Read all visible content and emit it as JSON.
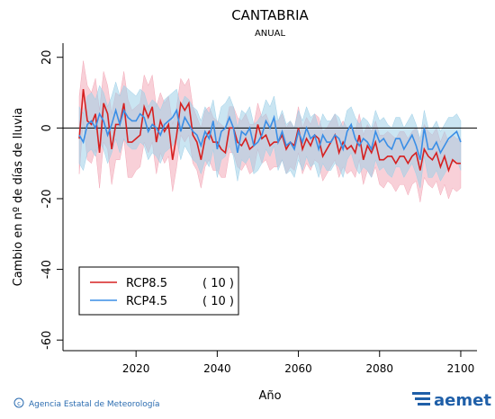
{
  "chart_data": {
    "type": "line",
    "title": "CANTABRIA",
    "subtitle": "ANUAL",
    "x_label": "Año",
    "y_label": "Cambio en nº de días de lluvia",
    "xlim": [
      2002,
      2104
    ],
    "xticks": [
      2020,
      2040,
      2060,
      2080,
      2100
    ],
    "ylim": [
      -63,
      24
    ],
    "yticks": [
      -60,
      -40,
      -20,
      0,
      20
    ],
    "hline": 0,
    "legend": "bottom-left",
    "x": [
      2006,
      2007,
      2008,
      2009,
      2010,
      2011,
      2012,
      2013,
      2014,
      2015,
      2016,
      2017,
      2018,
      2019,
      2020,
      2021,
      2022,
      2023,
      2024,
      2025,
      2026,
      2027,
      2028,
      2029,
      2030,
      2031,
      2032,
      2033,
      2034,
      2035,
      2036,
      2037,
      2038,
      2039,
      2040,
      2041,
      2042,
      2043,
      2044,
      2045,
      2046,
      2047,
      2048,
      2049,
      2050,
      2051,
      2052,
      2053,
      2054,
      2055,
      2056,
      2057,
      2058,
      2059,
      2060,
      2061,
      2062,
      2063,
      2064,
      2065,
      2066,
      2067,
      2068,
      2069,
      2070,
      2071,
      2072,
      2073,
      2074,
      2075,
      2076,
      2077,
      2078,
      2079,
      2080,
      2081,
      2082,
      2083,
      2084,
      2085,
      2086,
      2087,
      2088,
      2089,
      2090,
      2091,
      2092,
      2093,
      2094,
      2095,
      2096,
      2097,
      2098,
      2099,
      2100
    ],
    "series": [
      {
        "name": "RCP8.5",
        "runs": "( 10 )",
        "color": "#d62020",
        "band_color": "#f3a9b8",
        "values": [
          -3,
          11,
          2,
          1,
          4,
          -7,
          7,
          4,
          -6,
          1,
          1,
          7,
          -4,
          -4,
          -3,
          -2,
          6,
          3,
          6,
          -4,
          2,
          -1,
          1,
          -9,
          -2,
          7,
          5,
          7,
          -2,
          -4,
          -9,
          -3,
          -1,
          -4,
          -4,
          -6,
          -7,
          0,
          0,
          -4,
          -5,
          -3,
          -6,
          -5,
          1,
          -3,
          -2,
          -5,
          -4,
          -4,
          -2,
          -6,
          -4,
          -5,
          0,
          -6,
          -3,
          -5,
          -2,
          -3,
          -8,
          -6,
          -4,
          -2,
          -7,
          -4,
          -6,
          -5,
          -7,
          -2,
          -9,
          -5,
          -7,
          -4,
          -9,
          -9,
          -8,
          -8,
          -10,
          -8,
          -8,
          -10,
          -8,
          -7,
          -12,
          -6,
          -8,
          -9,
          -7,
          -11,
          -8,
          -12,
          -9,
          -10,
          -10
        ],
        "upper": [
          9,
          19,
          12,
          10,
          14,
          5,
          16,
          12,
          4,
          10,
          9,
          16,
          8,
          5,
          6,
          7,
          15,
          12,
          15,
          6,
          10,
          7,
          9,
          1,
          6,
          14,
          12,
          14,
          6,
          3,
          0,
          5,
          6,
          3,
          2,
          1,
          0,
          6,
          6,
          3,
          2,
          4,
          1,
          1,
          7,
          3,
          4,
          1,
          2,
          2,
          4,
          0,
          2,
          0,
          6,
          0,
          3,
          1,
          4,
          3,
          -1,
          0,
          2,
          4,
          0,
          2,
          0,
          1,
          -1,
          4,
          -2,
          1,
          -1,
          2,
          -2,
          -2,
          -1,
          -2,
          -3,
          -1,
          -1,
          -3,
          -1,
          0,
          -4,
          1,
          -1,
          -2,
          0,
          -4,
          -1,
          -4,
          -2,
          -3,
          -3
        ],
        "lower": [
          -13,
          2,
          -9,
          -10,
          -6,
          -17,
          -4,
          -6,
          -16,
          -9,
          -9,
          -3,
          -14,
          -14,
          -12,
          -11,
          -4,
          -7,
          -4,
          -13,
          -7,
          -10,
          -8,
          -18,
          -11,
          -2,
          -4,
          -2,
          -10,
          -12,
          -17,
          -11,
          -9,
          -12,
          -12,
          -14,
          -14,
          -7,
          -7,
          -11,
          -12,
          -10,
          -13,
          -12,
          -6,
          -10,
          -9,
          -12,
          -11,
          -11,
          -9,
          -13,
          -11,
          -12,
          -7,
          -13,
          -10,
          -12,
          -9,
          -10,
          -15,
          -13,
          -11,
          -9,
          -14,
          -11,
          -13,
          -12,
          -14,
          -9,
          -16,
          -12,
          -14,
          -11,
          -16,
          -17,
          -15,
          -16,
          -18,
          -16,
          -16,
          -19,
          -16,
          -15,
          -21,
          -14,
          -16,
          -17,
          -15,
          -19,
          -16,
          -20,
          -17,
          -18,
          -17
        ]
      },
      {
        "name": "RCP4.5",
        "runs": "( 10 )",
        "color": "#3a8ee6",
        "band_color": "#9fd0e8",
        "values": [
          -2,
          -4,
          1,
          2,
          0,
          4,
          2,
          -2,
          1,
          5,
          1,
          5,
          3,
          2,
          2,
          4,
          3,
          -1,
          1,
          0,
          -2,
          1,
          2,
          3,
          5,
          -1,
          3,
          1,
          -1,
          -2,
          -5,
          -1,
          -3,
          2,
          -6,
          -1,
          0,
          3,
          0,
          -7,
          -1,
          -2,
          0,
          -5,
          -4,
          -2,
          2,
          0,
          3,
          -4,
          -1,
          -5,
          -4,
          -6,
          -1,
          -4,
          0,
          -3,
          -2,
          -6,
          -2,
          -4,
          -4,
          -2,
          -3,
          -6,
          -1,
          1,
          -3,
          -5,
          -3,
          -4,
          -6,
          -1,
          -4,
          -3,
          -5,
          -6,
          -3,
          -3,
          -6,
          -4,
          -2,
          -5,
          -9,
          0,
          -6,
          -6,
          -4,
          -7,
          -5,
          -3,
          -2,
          -1,
          -4
        ],
        "upper": [
          6,
          4,
          9,
          10,
          8,
          12,
          10,
          6,
          9,
          13,
          9,
          12,
          11,
          10,
          9,
          11,
          10,
          6,
          8,
          7,
          5,
          8,
          9,
          10,
          11,
          6,
          9,
          8,
          6,
          5,
          2,
          6,
          4,
          8,
          1,
          6,
          7,
          9,
          6,
          0,
          5,
          4,
          6,
          1,
          2,
          4,
          8,
          6,
          9,
          2,
          5,
          1,
          2,
          0,
          5,
          2,
          6,
          3,
          4,
          0,
          4,
          2,
          2,
          4,
          3,
          0,
          5,
          6,
          3,
          1,
          3,
          2,
          0,
          5,
          2,
          3,
          1,
          0,
          3,
          3,
          0,
          2,
          4,
          1,
          -3,
          5,
          0,
          0,
          2,
          -1,
          1,
          3,
          3,
          4,
          2
        ],
        "lower": [
          -10,
          -12,
          -7,
          -6,
          -8,
          -4,
          -6,
          -10,
          -7,
          -3,
          -7,
          -3,
          -5,
          -6,
          -6,
          -4,
          -5,
          -9,
          -7,
          -8,
          -10,
          -7,
          -6,
          -5,
          -3,
          -9,
          -5,
          -7,
          -9,
          -10,
          -13,
          -9,
          -11,
          -6,
          -14,
          -9,
          -8,
          -5,
          -8,
          -15,
          -9,
          -10,
          -8,
          -13,
          -12,
          -10,
          -6,
          -8,
          -5,
          -12,
          -9,
          -13,
          -12,
          -14,
          -9,
          -12,
          -8,
          -11,
          -10,
          -14,
          -10,
          -12,
          -12,
          -10,
          -11,
          -14,
          -9,
          -7,
          -11,
          -13,
          -11,
          -12,
          -14,
          -9,
          -12,
          -11,
          -13,
          -14,
          -11,
          -11,
          -14,
          -12,
          -10,
          -13,
          -17,
          -8,
          -14,
          -14,
          -12,
          -15,
          -13,
          -11,
          -10,
          -9,
          -12
        ]
      }
    ]
  },
  "footer": {
    "agency": "Agencia Estatal de Meteorología",
    "logo": "aemet"
  }
}
